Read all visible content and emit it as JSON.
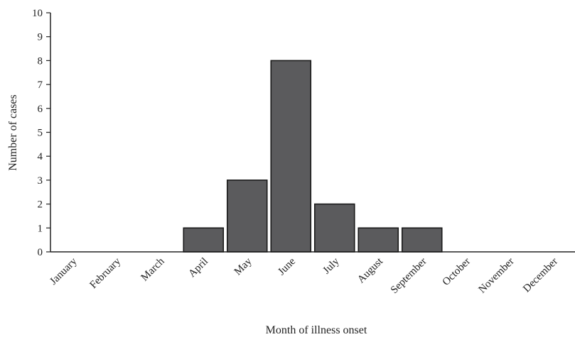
{
  "chart_data": {
    "type": "bar",
    "categories": [
      "January",
      "February",
      "March",
      "April",
      "May",
      "June",
      "July",
      "August",
      "September",
      "October",
      "November",
      "December"
    ],
    "values": [
      0,
      0,
      0,
      1,
      3,
      8,
      2,
      1,
      1,
      0,
      0,
      0
    ],
    "xlabel": "Month of illness onset",
    "ylabel": "Number of cases",
    "ylim": [
      0,
      10
    ],
    "yticks": [
      0,
      1,
      2,
      3,
      4,
      5,
      6,
      7,
      8,
      9,
      10
    ],
    "grid": false,
    "legend": "none",
    "colors": {
      "bar_fill": "#5b5b5d",
      "bar_stroke": "#1a1a1a",
      "axis": "#222222"
    }
  }
}
